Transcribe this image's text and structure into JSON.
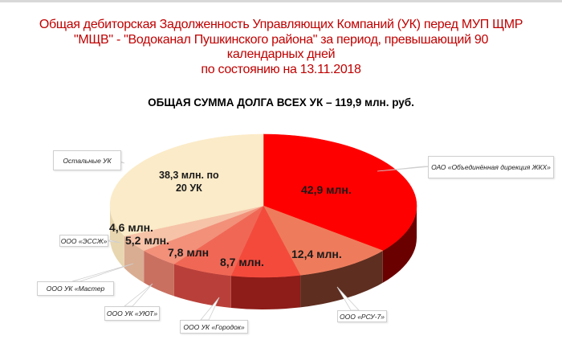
{
  "title": {
    "lines": [
      "Общая дебиторская Задолженность Управляющих Компаний (УК) перед МУП ЩМР",
      "\"МЩВ\" - \"Водоканал Пушкинского района\" за период, превышающий 90",
      "календарных дней",
      "по состоянию на 13.11.2018"
    ],
    "color": "#c00000"
  },
  "subtitle": "ОБЩАЯ СУММА ДОЛГА ВСЕХ УК – 119,9 млн. руб.",
  "chart_data": {
    "type": "pie",
    "style": "3d",
    "title": "ОБЩАЯ СУММА ДОЛГА ВСЕХ УК – 119,9 млн. руб.",
    "unit": "млн. руб.",
    "total": 119.9,
    "start_angle": "12 o'clock, clockwise",
    "categories": [
      "ОАО «Объединённая дирекция ЖКХ»",
      "ООО «РСУ-7»",
      "ООО УК «Городок»",
      "ООО УК «УЮТ»",
      "ООО УК «Мастер",
      "ООО «ЭССЖ»",
      "Остальные УК"
    ],
    "values": [
      42.9,
      12.4,
      8.7,
      7.8,
      5.2,
      4.6,
      38.3
    ],
    "data_labels": [
      "42,9 млн.",
      "12,4 млн.",
      "8,7 млн.",
      "7,8 млн",
      "5,2 млн.",
      "4,6 млн.",
      "38,3 млн. по 20 УК"
    ],
    "colors": [
      "#ff0000",
      "#ee7c5c",
      "#f44a3c",
      "#f06855",
      "#f2907a",
      "#f6c3a8",
      "#fbebc8"
    ],
    "side_colors": [
      "#6b0000",
      "#5e2e20",
      "#8e1c18",
      "#b9403a",
      "#c97061",
      "#d9ad92",
      "#e8d6b0"
    ]
  },
  "slices": [
    {
      "label": "42,9 млн.",
      "callout": "ОАО «Объединённая дирекция ЖКХ»"
    },
    {
      "label": "12,4 млн.",
      "callout": "ООО «РСУ-7»"
    },
    {
      "label": "8,7 млн.",
      "callout": "ООО УК «Городок»"
    },
    {
      "label": "7,8 млн",
      "callout": "ООО УК «УЮТ»"
    },
    {
      "label": "5,2 млн.",
      "callout": "ООО УК «Мастер"
    },
    {
      "label": "4,6 млн.",
      "callout": "ООО «ЭССЖ»"
    },
    {
      "label_line1": "38,3 млн. по",
      "label_line2": "20 УК",
      "callout": "Остальные УК"
    }
  ]
}
